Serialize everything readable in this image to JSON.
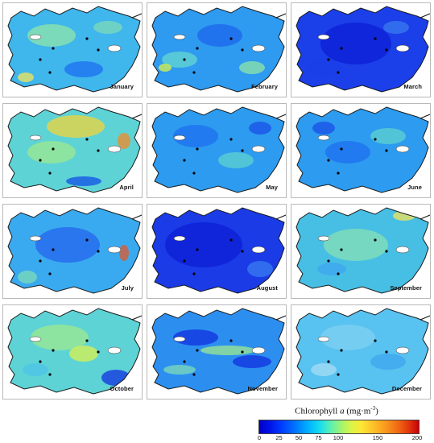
{
  "panels": [
    {
      "label": "January"
    },
    {
      "label": "February"
    },
    {
      "label": "March"
    },
    {
      "label": "April"
    },
    {
      "label": "May"
    },
    {
      "label": "June"
    },
    {
      "label": "July"
    },
    {
      "label": "August"
    },
    {
      "label": "September"
    },
    {
      "label": "October"
    },
    {
      "label": "November"
    },
    {
      "label": "December"
    }
  ],
  "panel_base_colors": [
    "#3fb6ec",
    "#2e9af0",
    "#1b3fe8",
    "#5ed3d6",
    "#2d9bef",
    "#2d9bef",
    "#3aaaf0",
    "#1a3be6",
    "#47bfe4",
    "#5ed3d6",
    "#2c8ff0",
    "#58c2f0"
  ],
  "legend": {
    "title_main": "Chlorophyll ",
    "title_var": "a",
    "title_units": " (mg·m",
    "title_exp": "-3",
    "title_close": ")",
    "ticks": [
      "0",
      "25",
      "50",
      "75",
      "100",
      "150",
      "200"
    ],
    "tick_values": [
      0,
      25,
      50,
      75,
      100,
      150,
      200
    ],
    "range": [
      0,
      200
    ]
  }
}
